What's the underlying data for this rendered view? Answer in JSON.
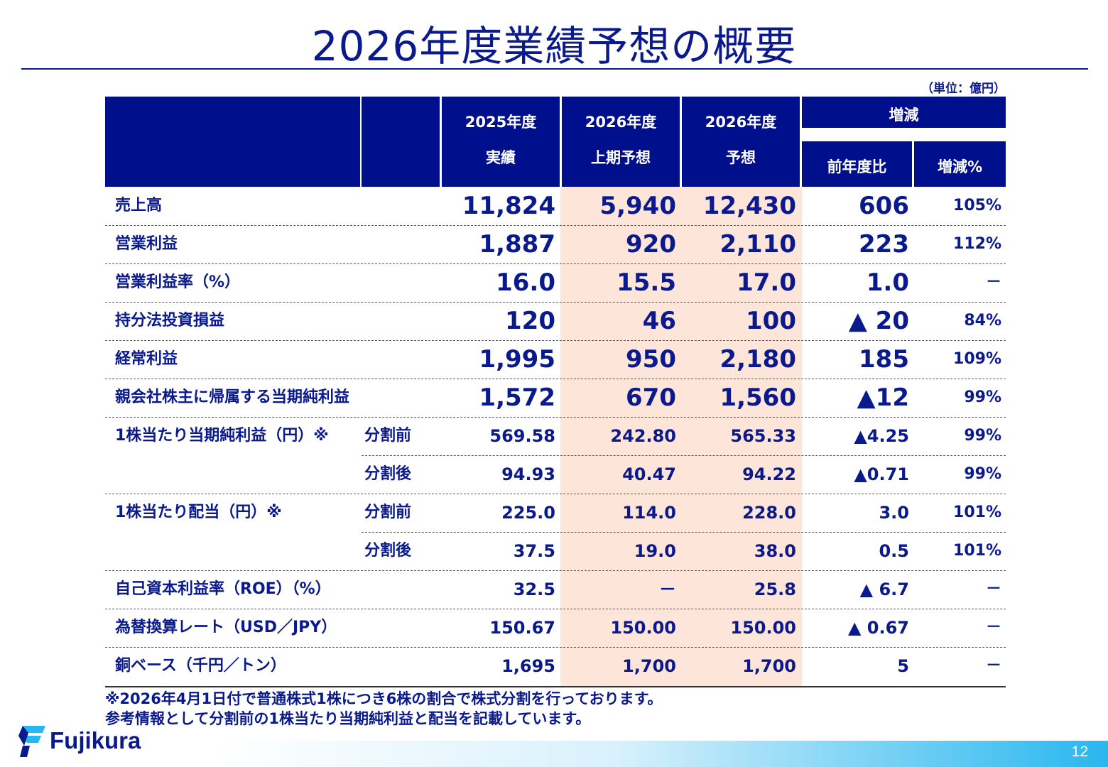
{
  "title": "2026年度業績予想の概要",
  "unit": "（単位：億円）",
  "header": {
    "col1": [
      "2025年度",
      "実績"
    ],
    "col2": [
      "2026年度",
      "上期予想"
    ],
    "col3": [
      "2026年度",
      "予想"
    ],
    "group": "増減",
    "sub1": "前年度比",
    "sub2": "増減%"
  },
  "rows": [
    {
      "label": "売上高",
      "sub": "",
      "v1": "11,824",
      "v2": "5,940",
      "v3": "12,430",
      "v4": "606",
      "v5": "105%"
    },
    {
      "label": "営業利益",
      "sub": "",
      "v1": "1,887",
      "v2": "920",
      "v3": "2,110",
      "v4": "223",
      "v5": "112%"
    },
    {
      "label": "営業利益率（%）",
      "sub": "",
      "v1": "16.0",
      "v2": "15.5",
      "v3": "17.0",
      "v4": "1.0",
      "v5": "－"
    },
    {
      "label": "持分法投資損益",
      "sub": "",
      "v1": "120",
      "v2": "46",
      "v3": "100",
      "v4": "▲ 20",
      "v5": "84%"
    },
    {
      "label": "経常利益",
      "sub": "",
      "v1": "1,995",
      "v2": "950",
      "v3": "2,180",
      "v4": "185",
      "v5": "109%"
    },
    {
      "label": "親会社株主に帰属する当期純利益",
      "sub": "",
      "v1": "1,572",
      "v2": "670",
      "v3": "1,560",
      "v4": "▲12",
      "v5": "99%"
    },
    {
      "label": "1株当たり当期純利益（円）※",
      "sub": "分割前",
      "v1": "569.58",
      "v2": "242.80",
      "v3": "565.33",
      "v4": "▲4.25",
      "v5": "99%"
    },
    {
      "label": "",
      "sub": "分割後",
      "v1": "94.93",
      "v2": "40.47",
      "v3": "94.22",
      "v4": "▲0.71",
      "v5": "99%"
    },
    {
      "label": "1株当たり配当（円）※",
      "sub": "分割前",
      "v1": "225.0",
      "v2": "114.0",
      "v3": "228.0",
      "v4": "3.0",
      "v5": "101%"
    },
    {
      "label": "",
      "sub": "分割後",
      "v1": "37.5",
      "v2": "19.0",
      "v3": "38.0",
      "v4": "0.5",
      "v5": "101%"
    },
    {
      "label": "自己資本利益率（ROE）（%）",
      "sub": "",
      "v1": "32.5",
      "v2": "－",
      "v3": "25.8",
      "v4": "▲ 6.7",
      "v5": "－"
    },
    {
      "label": "為替換算レート（USD／JPY）",
      "sub": "",
      "v1": "150.67",
      "v2": "150.00",
      "v3": "150.00",
      "v4": "▲ 0.67",
      "v5": "－"
    },
    {
      "label": "銅ベース（千円／トン）",
      "sub": "",
      "v1": "1,695",
      "v2": "1,700",
      "v3": "1,700",
      "v4": "5",
      "v5": "－"
    }
  ],
  "notes": [
    "※2026年4月1日付で普通株式1株につき6株の割合で株式分割を行っております。",
    "参考情報として分割前の1株当たり当期純利益と配当を記載しています。"
  ],
  "logo_text": "Fujikura",
  "page_number": "12",
  "colors": {
    "navy": "#000f8c",
    "text": "#0a1a8c",
    "highlight": "#fde5da",
    "accent": "#28b7ee"
  }
}
